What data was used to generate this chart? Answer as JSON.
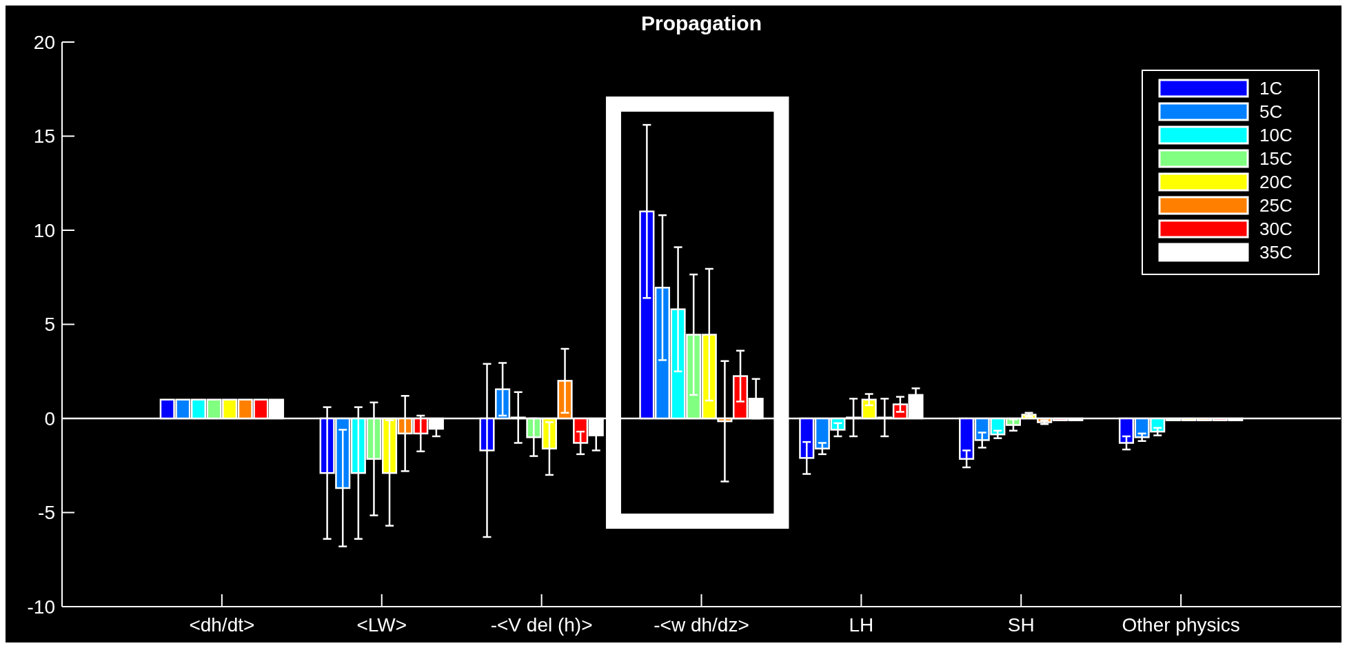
{
  "chart_data": {
    "type": "bar",
    "title": "Propagation",
    "categories": [
      "<dh/dt>",
      "<LW>",
      "-<V del (h)>",
      "-<w dh/dz>",
      "LH",
      "SH",
      "Other physics"
    ],
    "series": [
      {
        "name": "1C",
        "color": "#0000ff",
        "values": [
          1,
          -2.9,
          -1.7,
          11.0,
          -2.1,
          -2.15,
          -1.3
        ],
        "errors": [
          null,
          3.5,
          4.6,
          4.6,
          0.85,
          0.45,
          0.35
        ]
      },
      {
        "name": "5C",
        "color": "#0080ff",
        "values": [
          1,
          -3.7,
          1.55,
          6.95,
          -1.6,
          -1.15,
          -1.0
        ],
        "errors": [
          null,
          3.1,
          1.4,
          3.85,
          0.3,
          0.4,
          0.2
        ]
      },
      {
        "name": "10C",
        "color": "#00ffff",
        "values": [
          1,
          -2.9,
          0.05,
          5.8,
          -0.6,
          -0.85,
          -0.7
        ],
        "errors": [
          null,
          3.5,
          1.35,
          3.3,
          0.35,
          0.2,
          0.2
        ]
      },
      {
        "name": "15C",
        "color": "#80ff80",
        "values": [
          1,
          -2.15,
          -1.0,
          4.45,
          0.05,
          -0.35,
          -0.1
        ],
        "errors": [
          null,
          3.0,
          1.0,
          3.2,
          1.0,
          0.3,
          null
        ]
      },
      {
        "name": "20C",
        "color": "#ffff00",
        "values": [
          1,
          -2.9,
          -1.6,
          4.45,
          1.0,
          0.2,
          -0.1
        ],
        "errors": [
          null,
          2.8,
          1.4,
          3.5,
          0.3,
          0.1,
          null
        ]
      },
      {
        "name": "25C",
        "color": "#ff8000",
        "values": [
          1,
          -0.8,
          2.0,
          -0.15,
          0.05,
          -0.2,
          -0.1
        ],
        "errors": [
          null,
          2.0,
          1.7,
          3.2,
          1.0,
          0.1,
          null
        ]
      },
      {
        "name": "30C",
        "color": "#ff0000",
        "values": [
          1,
          -0.8,
          -1.3,
          2.25,
          0.75,
          -0.1,
          -0.1
        ],
        "errors": [
          null,
          0.95,
          0.6,
          1.35,
          0.4,
          null,
          null
        ]
      },
      {
        "name": "35C",
        "color": "#ffffff",
        "values": [
          1,
          -0.55,
          -0.9,
          1.05,
          1.25,
          -0.1,
          -0.1
        ],
        "errors": [
          null,
          0.4,
          0.8,
          1.05,
          0.35,
          null,
          null
        ]
      }
    ],
    "ylim": [
      -10,
      20
    ],
    "yticks": [
      -10,
      -5,
      0,
      5,
      10,
      15,
      20
    ],
    "ref_lines": [
      {
        "axis": "y",
        "value": 0,
        "color": "#ffffff"
      }
    ],
    "grid": false,
    "legend": "top right"
  }
}
